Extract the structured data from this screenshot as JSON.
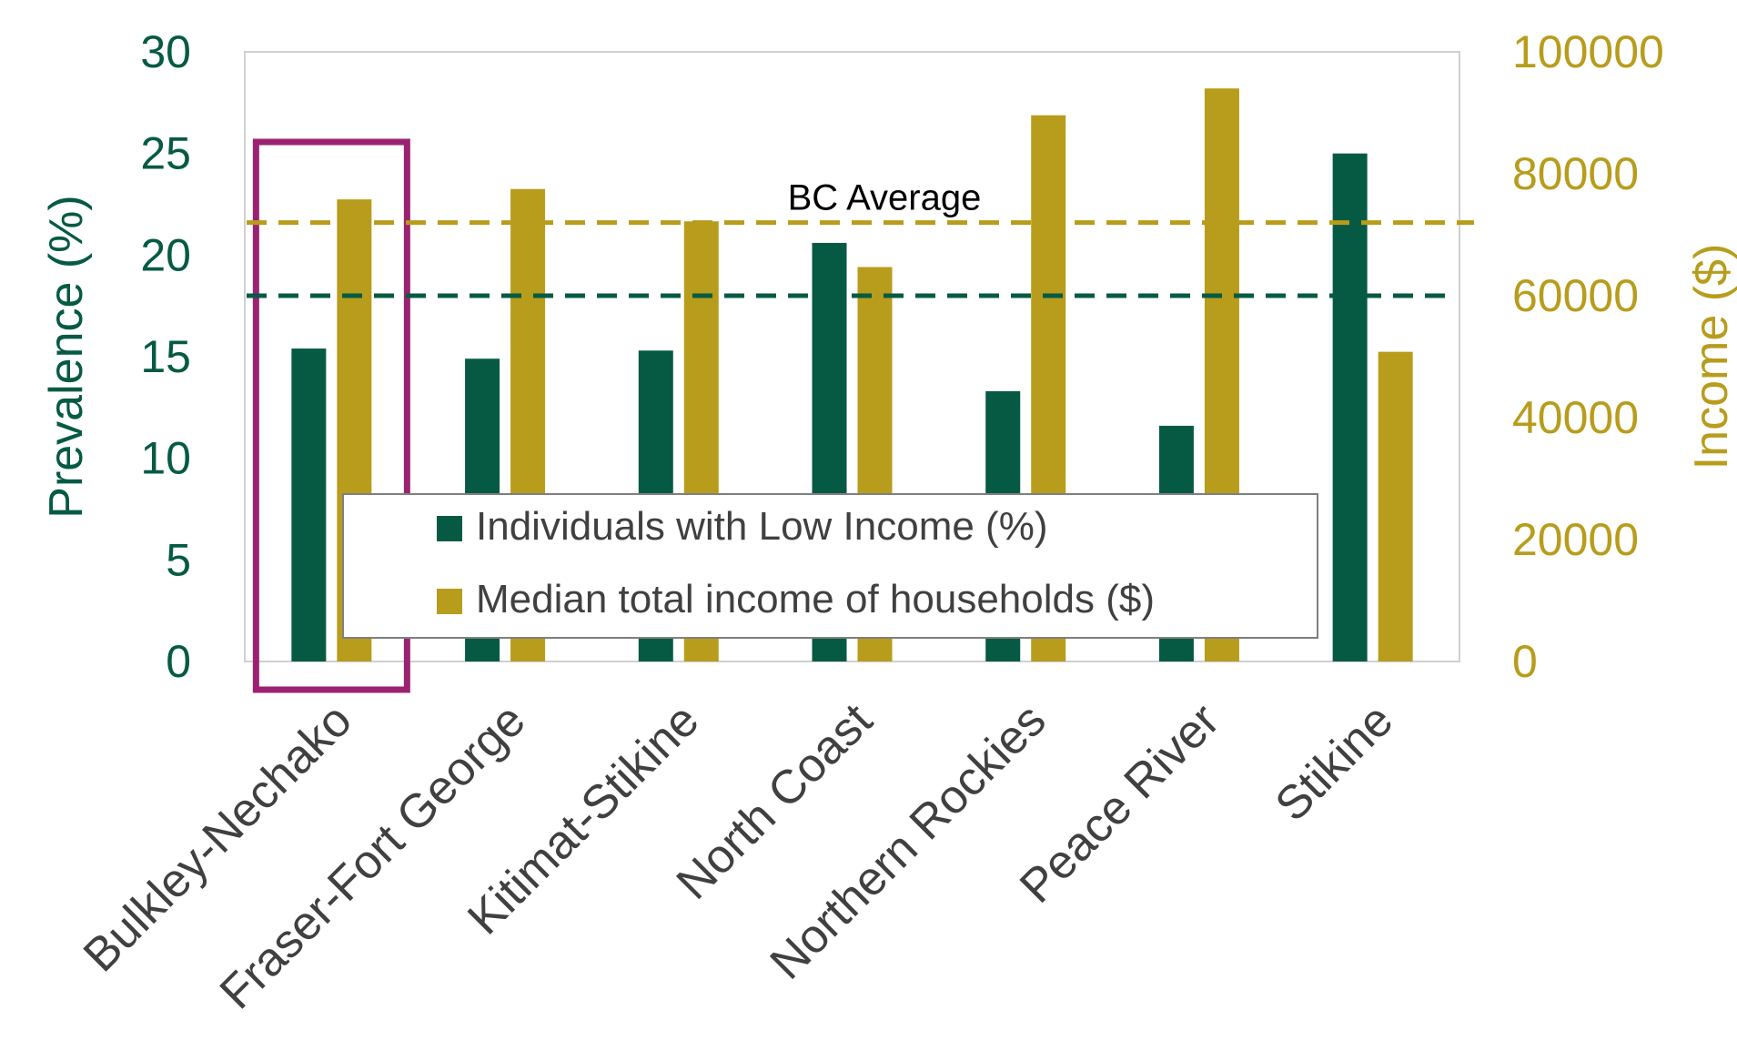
{
  "chart_data": {
    "type": "bar",
    "categories": [
      "Bulkley-Nechako",
      "Fraser-Fort George",
      "Kitimat-Stikine",
      "North Coast",
      "Northern Rockies",
      "Peace River",
      "Stikine"
    ],
    "series": [
      {
        "name": "Individuals with Low Income (%)",
        "axis": "left",
        "color": "#065a44",
        "values": [
          15.4,
          14.9,
          15.3,
          20.6,
          13.3,
          11.6,
          25.0
        ]
      },
      {
        "name": "Median total income of households ($)",
        "axis": "right",
        "color": "#b89c1c",
        "values": [
          75800,
          77500,
          72200,
          64700,
          89600,
          94000,
          50800
        ]
      }
    ],
    "ylabel": "Prevalence (%)",
    "ylabel_right": "Income ($)",
    "ylim": [
      0,
      30
    ],
    "ylim_right": [
      0,
      100000
    ],
    "yticks": [
      "0",
      "5",
      "10",
      "15",
      "20",
      "25",
      "30"
    ],
    "yticks_right": [
      "0",
      "20000",
      "40000",
      "60000",
      "80000",
      "100000"
    ],
    "reference_lines": [
      {
        "label": "BC Average",
        "axis": "right",
        "value": 72000,
        "color": "#b89c1c",
        "style": "dashed"
      },
      {
        "label": "",
        "axis": "left",
        "value": 18,
        "color": "#065a44",
        "style": "dashed"
      }
    ],
    "highlight_category": "Bulkley-Nechako",
    "highlight_color": "#9b2271",
    "legend_position": "bottom-center",
    "grid": false,
    "colors": {
      "left_axis": "#065a44",
      "right_axis": "#b89c1c"
    }
  }
}
